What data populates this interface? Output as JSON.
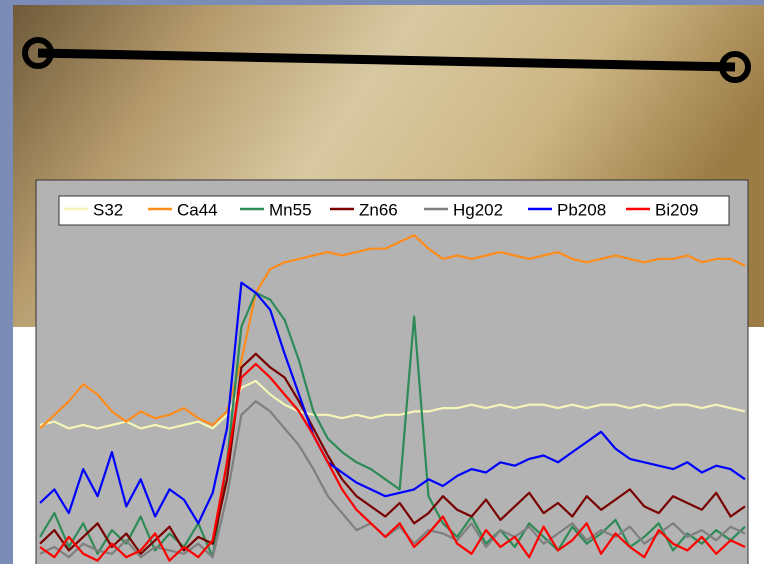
{
  "chart_data": {
    "type": "line",
    "series": [
      {
        "name": "S32",
        "color": "#f5f5b8",
        "values": [
          41,
          42,
          40,
          41,
          40,
          41,
          42,
          40,
          41,
          40,
          41,
          42,
          40,
          44,
          52,
          54,
          50,
          47,
          45,
          44,
          44,
          43,
          44,
          43,
          44,
          44,
          45,
          45,
          46,
          46,
          47,
          46,
          47,
          46,
          47,
          47,
          46,
          47,
          46,
          47,
          47,
          46,
          47,
          46,
          47,
          47,
          46,
          47,
          46,
          45
        ]
      },
      {
        "name": "Ca44",
        "color": "#ff8c1a",
        "values": [
          40,
          44,
          48,
          53,
          50,
          45,
          42,
          45,
          43,
          44,
          46,
          43,
          41,
          45,
          60,
          80,
          87,
          89,
          90,
          91,
          92,
          91,
          92,
          93,
          93,
          95,
          97,
          93,
          90,
          91,
          90,
          91,
          92,
          91,
          90,
          91,
          92,
          90,
          89,
          90,
          91,
          90,
          89,
          90,
          90,
          91,
          89,
          90,
          90,
          88
        ]
      },
      {
        "name": "Mn55",
        "color": "#2e8b57",
        "values": [
          8,
          15,
          5,
          12,
          3,
          10,
          6,
          14,
          4,
          9,
          5,
          12,
          2,
          30,
          70,
          80,
          78,
          72,
          60,
          45,
          37,
          33,
          30,
          28,
          25,
          22,
          73,
          20,
          12,
          8,
          14,
          6,
          10,
          5,
          12,
          8,
          4,
          11,
          6,
          9,
          13,
          5,
          8,
          12,
          4,
          9,
          6,
          10,
          7,
          11
        ]
      },
      {
        "name": "Zn66",
        "color": "#7a0000",
        "values": [
          6,
          10,
          4,
          8,
          12,
          5,
          9,
          3,
          7,
          11,
          4,
          8,
          6,
          25,
          58,
          62,
          58,
          55,
          48,
          40,
          32,
          25,
          20,
          17,
          14,
          18,
          12,
          15,
          20,
          16,
          14,
          19,
          13,
          17,
          21,
          15,
          18,
          14,
          20,
          16,
          19,
          22,
          17,
          15,
          20,
          18,
          16,
          21,
          14,
          17
        ]
      },
      {
        "name": "Hg202",
        "color": "#7f7f7f",
        "values": [
          3,
          5,
          2,
          6,
          4,
          3,
          7,
          2,
          5,
          4,
          3,
          6,
          2,
          20,
          44,
          48,
          45,
          40,
          35,
          28,
          20,
          15,
          10,
          12,
          8,
          11,
          6,
          10,
          9,
          7,
          12,
          5,
          10,
          8,
          11,
          6,
          9,
          12,
          7,
          10,
          8,
          11,
          6,
          9,
          12,
          8,
          10,
          7,
          11,
          9
        ]
      },
      {
        "name": "Pb208",
        "color": "#0000ff",
        "values": [
          18,
          22,
          15,
          28,
          20,
          33,
          17,
          25,
          14,
          22,
          19,
          12,
          21,
          40,
          83,
          80,
          75,
          62,
          50,
          38,
          30,
          27,
          24,
          22,
          20,
          21,
          22,
          25,
          23,
          26,
          28,
          27,
          30,
          29,
          31,
          32,
          30,
          33,
          36,
          39,
          34,
          31,
          30,
          29,
          28,
          30,
          27,
          29,
          28,
          25
        ]
      },
      {
        "name": "Bi209",
        "color": "#ff0000",
        "values": [
          5,
          2,
          8,
          3,
          1,
          6,
          2,
          4,
          9,
          1,
          5,
          2,
          7,
          30,
          55,
          59,
          55,
          50,
          45,
          38,
          30,
          22,
          16,
          12,
          8,
          12,
          5,
          9,
          14,
          6,
          3,
          10,
          5,
          8,
          2,
          11,
          4,
          7,
          12,
          3,
          9,
          5,
          2,
          10,
          6,
          4,
          8,
          3,
          7,
          5
        ]
      }
    ],
    "ylim": [
      0,
      100
    ]
  }
}
